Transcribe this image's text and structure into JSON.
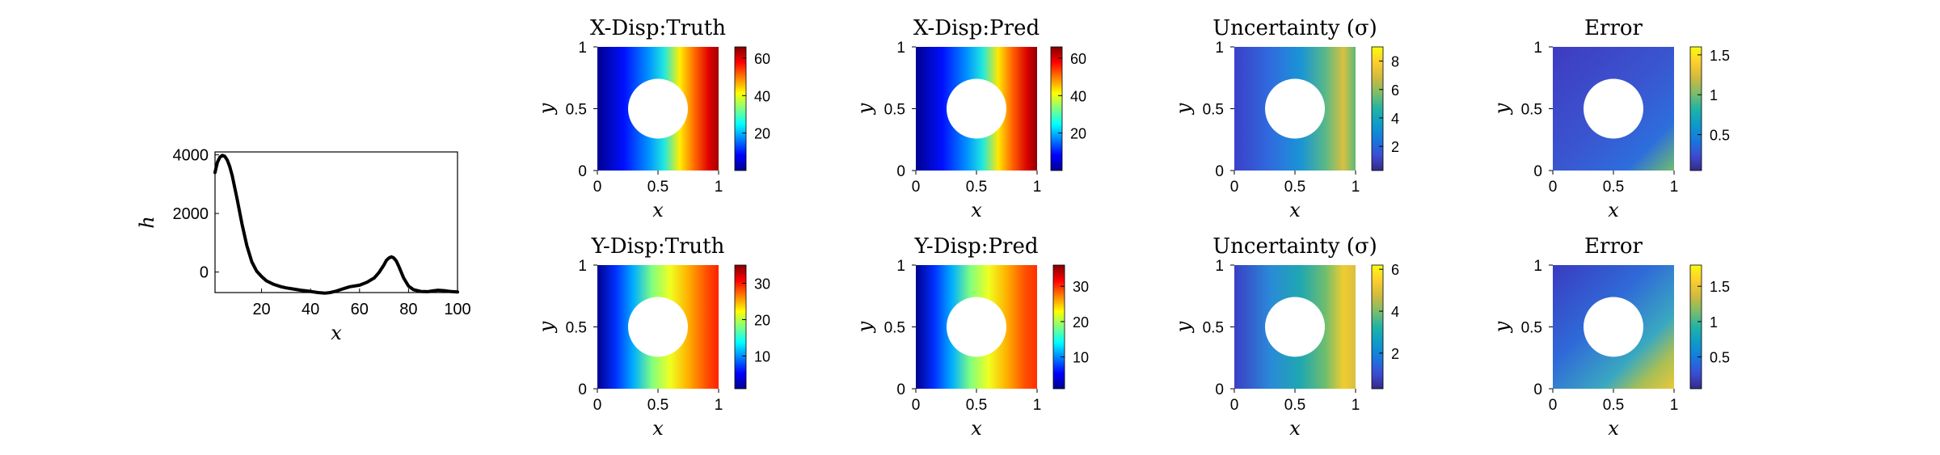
{
  "figure": {
    "line_panel": {
      "type": "line",
      "xlabel": "x",
      "ylabel": "h",
      "xlim": [
        1,
        100
      ],
      "ylim": [
        -700,
        4100
      ],
      "xticks": [
        "20",
        "40",
        "60",
        "80",
        "100"
      ],
      "yticks": [
        "0",
        "2000",
        "4000"
      ],
      "series": [
        {
          "color": "#000000",
          "x": [
            1,
            2,
            3,
            4,
            5,
            6,
            7,
            8,
            10,
            12,
            14,
            16,
            18,
            20,
            22,
            25,
            28,
            30,
            33,
            36,
            40,
            43,
            46,
            48,
            50,
            53,
            56,
            60,
            63,
            66,
            68,
            70,
            71,
            72,
            73,
            74,
            75,
            76,
            77,
            78,
            80,
            82,
            85,
            88,
            90,
            92,
            95,
            97,
            100
          ],
          "y": [
            3400,
            3750,
            3920,
            3980,
            3950,
            3820,
            3600,
            3300,
            2500,
            1650,
            900,
            350,
            30,
            -150,
            -300,
            -420,
            -500,
            -540,
            -580,
            -620,
            -660,
            -700,
            -720,
            -700,
            -660,
            -580,
            -500,
            -450,
            -350,
            -200,
            -10,
            250,
            400,
            480,
            520,
            480,
            380,
            200,
            0,
            -200,
            -480,
            -600,
            -660,
            -670,
            -640,
            -620,
            -640,
            -660,
            -680
          ]
        }
      ]
    },
    "row1_titles": [
      "X-Disp:Truth",
      "X-Disp:Pred",
      "Uncertainty (σ)",
      "Error"
    ],
    "row2_titles": [
      "Y-Disp:Truth",
      "Y-Disp:Pred",
      "Uncertainty (σ)",
      "Error"
    ],
    "field_axes": {
      "xlabel": "x",
      "ylabel": "y",
      "xticks": [
        "0",
        "0.5",
        "1"
      ],
      "yticks": [
        "0",
        "0.5",
        "1"
      ]
    },
    "colorbars": [
      {
        "ticks": [
          "20",
          "40",
          "60"
        ],
        "min": 0,
        "max": 66,
        "colormap": "jet"
      },
      {
        "ticks": [
          "20",
          "40",
          "60"
        ],
        "min": 0,
        "max": 66,
        "colormap": "jet"
      },
      {
        "ticks": [
          "2",
          "4",
          "6",
          "8"
        ],
        "min": 0.3,
        "max": 9,
        "colormap": "parula"
      },
      {
        "ticks": [
          "0.5",
          "1",
          "1.5"
        ],
        "min": 0.05,
        "max": 1.6,
        "colormap": "parula"
      },
      {
        "ticks": [
          "10",
          "20",
          "30"
        ],
        "min": 1,
        "max": 35,
        "colormap": "jet"
      },
      {
        "ticks": [
          "10",
          "20",
          "30"
        ],
        "min": 1,
        "max": 36,
        "colormap": "jet"
      },
      {
        "ticks": [
          "2",
          "4",
          "6"
        ],
        "min": 0.3,
        "max": 6.2,
        "colormap": "parula"
      },
      {
        "ticks": [
          "0.5",
          "1",
          "1.5"
        ],
        "min": 0.05,
        "max": 1.8,
        "colormap": "parula"
      }
    ],
    "colors": {
      "hole": "#ffffff",
      "jet": [
        "#00008f",
        "#0000ff",
        "#0080ff",
        "#00ffff",
        "#80ff80",
        "#ffff00",
        "#ff8000",
        "#ff0000",
        "#800000"
      ],
      "parula": [
        "#352a87",
        "#3b4ed4",
        "#1779dd",
        "#0d9cc9",
        "#21b3a5",
        "#7dbd6a",
        "#d0ba3e",
        "#fcce2e",
        "#f9fb0e"
      ]
    }
  }
}
